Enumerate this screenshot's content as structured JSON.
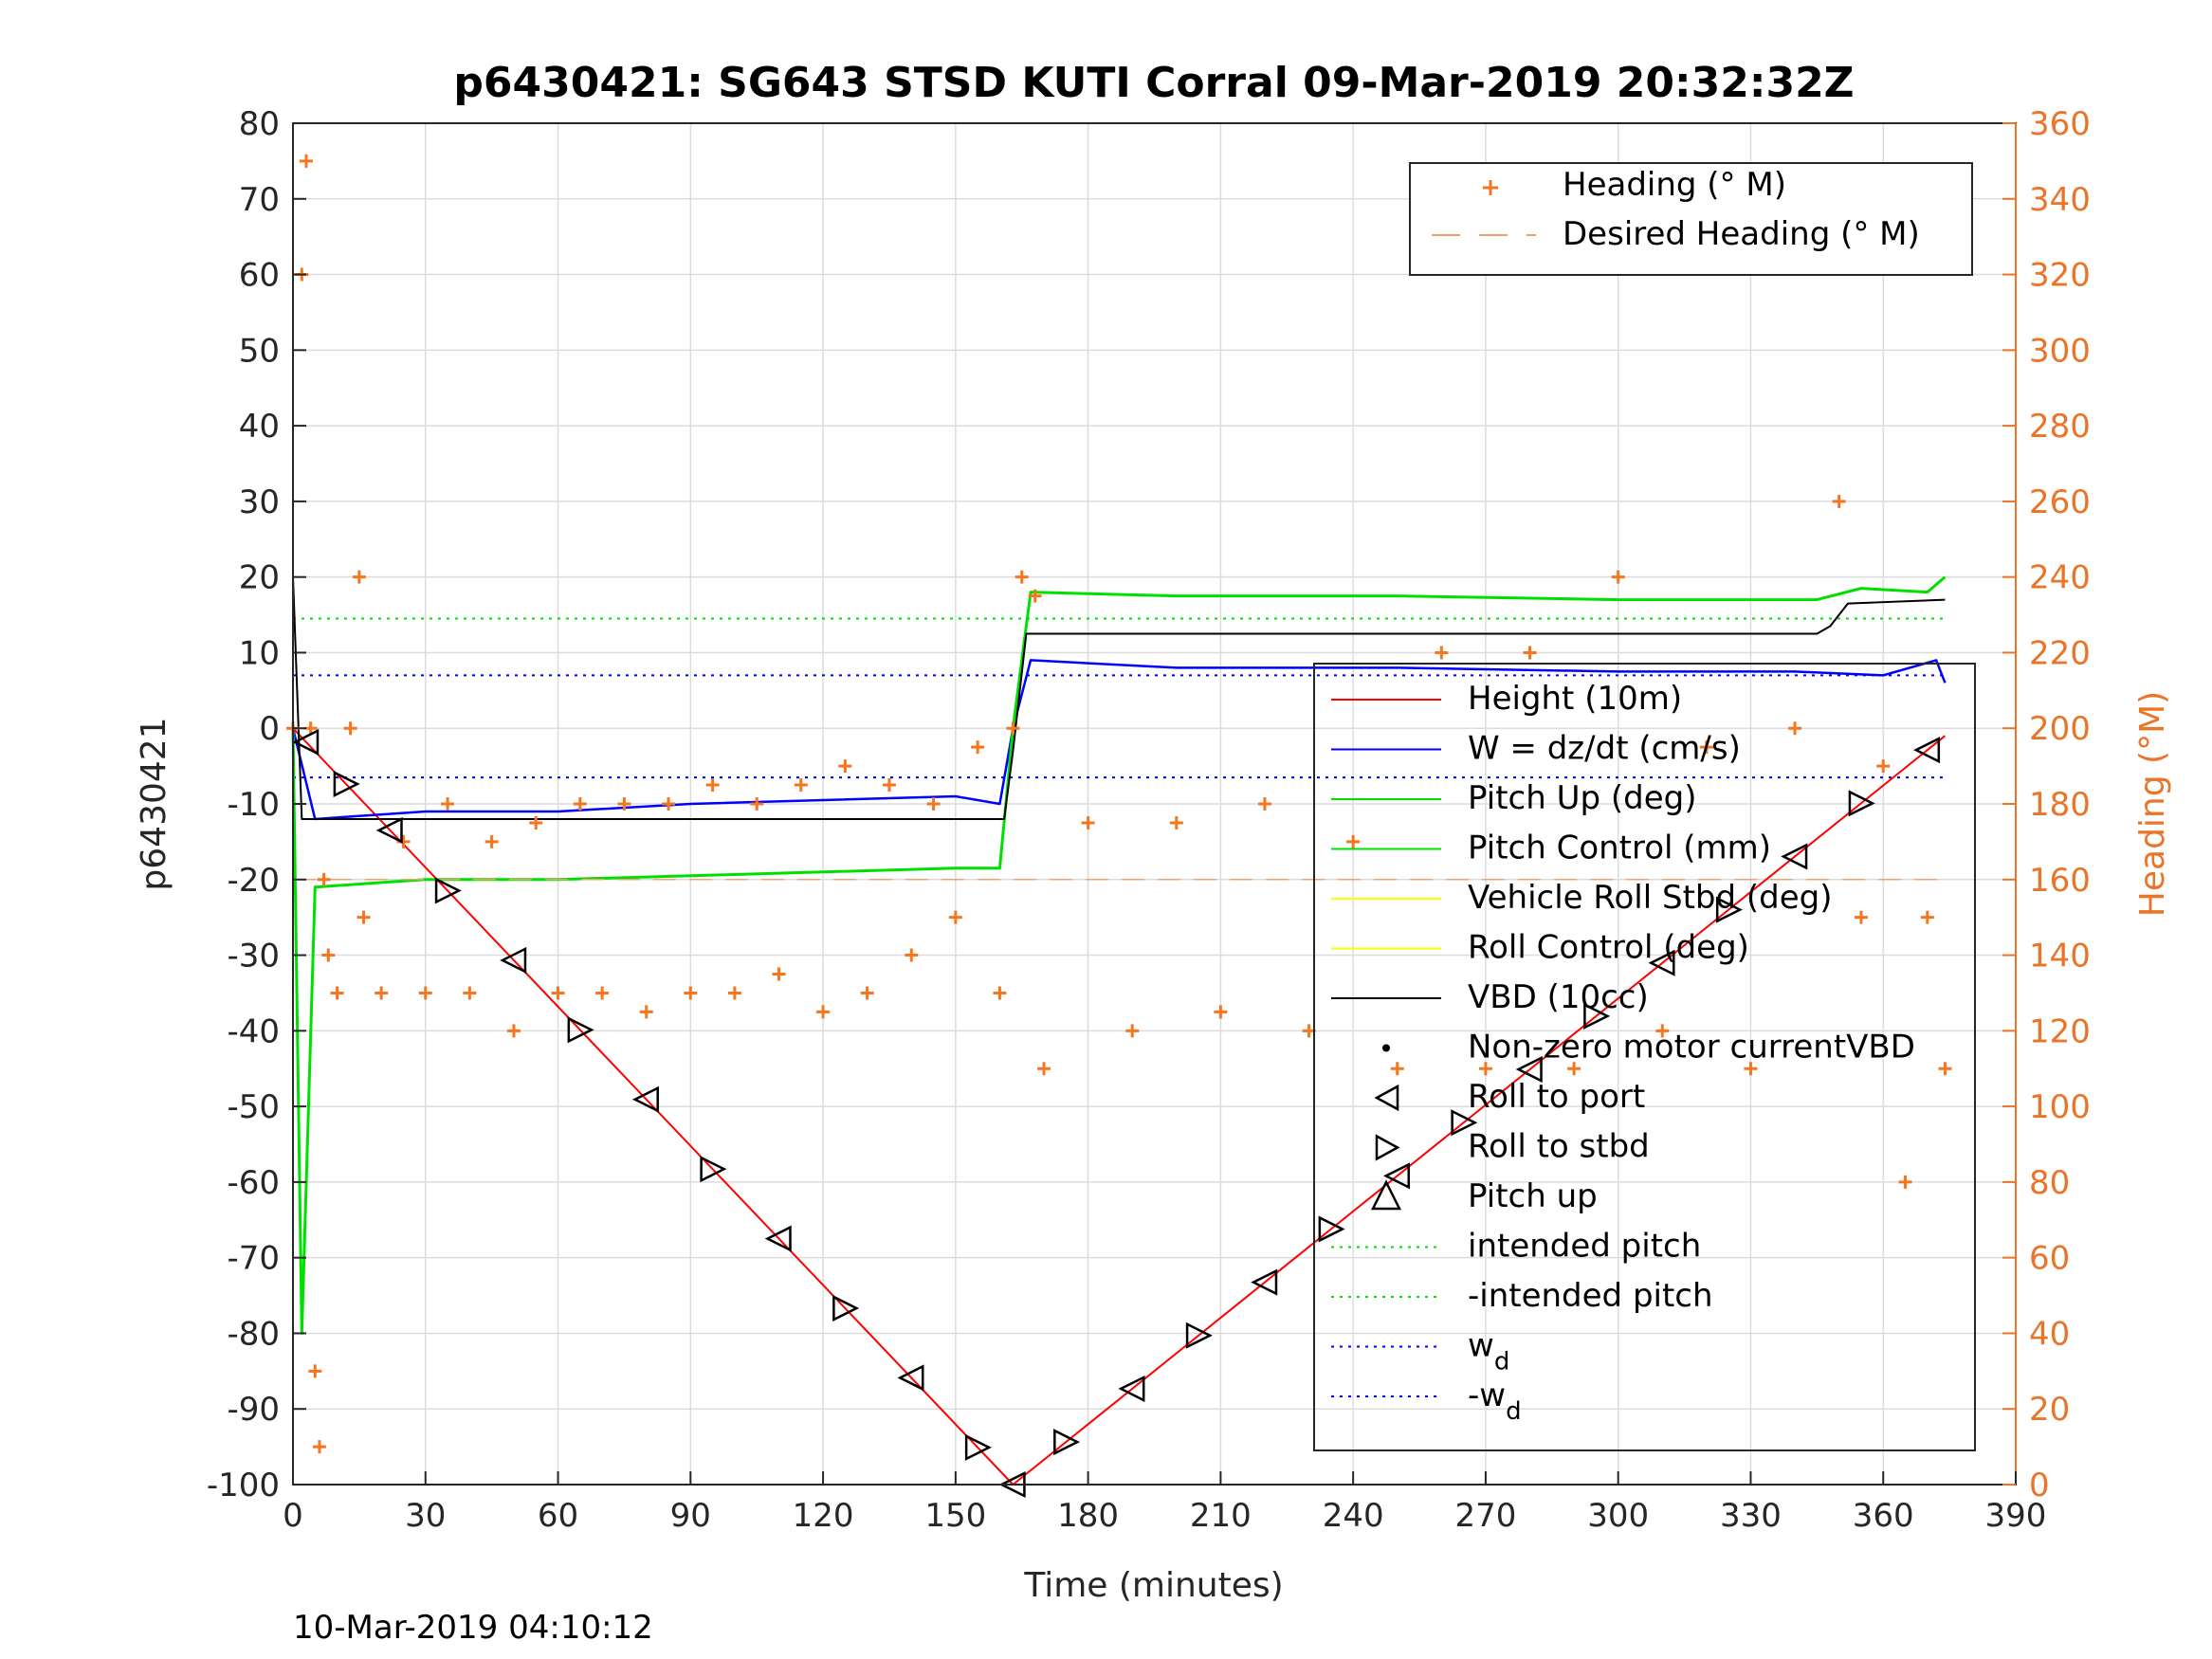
{
  "chart_data": {
    "type": "line",
    "title": "p6430421: SG643 STSD KUTI Corral 09-Mar-2019 20:32:32Z",
    "xlabel": "Time (minutes)",
    "ylabel_left": "p6430421",
    "ylabel_right": "Heading (°M)",
    "footer": "10-Mar-2019 04:10:12",
    "xlim": [
      0,
      390
    ],
    "ylim_left": [
      -100,
      80
    ],
    "ylim_right": [
      0,
      360
    ],
    "x_ticks": [
      "0",
      "30",
      "60",
      "90",
      "120",
      "150",
      "180",
      "210",
      "240",
      "270",
      "300",
      "330",
      "360",
      "390"
    ],
    "y_left_ticks": [
      "80",
      "70",
      "60",
      "50",
      "40",
      "30",
      "20",
      "10",
      "0",
      "-10",
      "-20",
      "-30",
      "-40",
      "-50",
      "-60",
      "-70",
      "-80",
      "-90",
      "-100"
    ],
    "y_right_ticks": [
      "360",
      "340",
      "320",
      "300",
      "280",
      "260",
      "240",
      "220",
      "200",
      "180",
      "160",
      "140",
      "120",
      "100",
      "80",
      "60",
      "40",
      "20",
      "0"
    ],
    "grid": true,
    "colors": {
      "height": "#ff0000",
      "w": "#0000ff",
      "pitch": "#00e000",
      "roll": "#ffff00",
      "vbd": "#000000",
      "heading": "#f5761f"
    },
    "legend_heading": [
      {
        "label": "Heading (° M)"
      },
      {
        "label": "Desired Heading (° M)"
      }
    ],
    "legend_main": [
      {
        "label": "Height (10m)"
      },
      {
        "label": "W = dz/dt (cm/s)"
      },
      {
        "label": "Pitch Up (deg)"
      },
      {
        "label": "Pitch Control (mm)"
      },
      {
        "label": "Vehicle Roll Stbd (deg)"
      },
      {
        "label": "Roll Control (deg)"
      },
      {
        "label": "VBD (10cc)"
      },
      {
        "label": "Non-zero motor currentVBD"
      },
      {
        "label": "Roll to port"
      },
      {
        "label": "Roll to stbd"
      },
      {
        "label": "Pitch up"
      },
      {
        "label": "intended pitch"
      },
      {
        "label": "-intended pitch"
      },
      {
        "label": "w",
        "sub": "d"
      },
      {
        "label": "-w",
        "sub": "d"
      }
    ],
    "series": [
      {
        "name": "Height (10m)",
        "x": [
          0,
          163,
          374
        ],
        "y": [
          0,
          -100,
          -1
        ]
      },
      {
        "name": "W = dz/dt (cm/s)",
        "x": [
          0,
          5,
          30,
          60,
          90,
          120,
          150,
          160,
          163,
          167,
          200,
          250,
          300,
          340,
          360,
          372,
          374
        ],
        "y": [
          0,
          -12,
          -11,
          -11,
          -10,
          -9.5,
          -9,
          -10,
          0,
          9,
          8,
          8,
          7.5,
          7.5,
          7,
          9,
          6
        ]
      },
      {
        "name": "Pitch Up (deg)",
        "x": [
          0,
          2,
          5,
          30,
          60,
          90,
          120,
          150,
          160,
          163,
          167,
          200,
          250,
          300,
          345,
          355,
          370,
          374
        ],
        "y": [
          0,
          -80,
          -21,
          -20,
          -20,
          -19.5,
          -19,
          -18.5,
          -18.5,
          0,
          18,
          17.5,
          17.5,
          17,
          17,
          18.5,
          18,
          20
        ]
      },
      {
        "name": "VBD (10cc)",
        "x": [
          0,
          2,
          6,
          161,
          163,
          166,
          345,
          348,
          352,
          374
        ],
        "y": [
          20,
          -12,
          -12,
          -12,
          -3,
          12.5,
          12.5,
          13.5,
          16.5,
          17
        ]
      },
      {
        "name": "Heading (° M)",
        "x": [
          0,
          2,
          3,
          4,
          5,
          6,
          7,
          8,
          10,
          13,
          15,
          16,
          20,
          25,
          30,
          35,
          40,
          45,
          50,
          55,
          60,
          65,
          70,
          75,
          80,
          85,
          90,
          95,
          100,
          105,
          110,
          115,
          120,
          125,
          130,
          135,
          140,
          145,
          150,
          155,
          160,
          163,
          165,
          168,
          170,
          180,
          190,
          200,
          210,
          220,
          230,
          240,
          250,
          260,
          270,
          280,
          290,
          300,
          310,
          320,
          330,
          340,
          350,
          355,
          360,
          365,
          370,
          374
        ],
        "y": [
          200,
          320,
          350,
          200,
          30,
          10,
          160,
          140,
          130,
          200,
          240,
          150,
          130,
          170,
          130,
          180,
          130,
          170,
          120,
          175,
          130,
          180,
          130,
          180,
          125,
          180,
          130,
          185,
          130,
          180,
          135,
          185,
          125,
          190,
          130,
          185,
          140,
          180,
          150,
          195,
          130,
          200,
          240,
          235,
          110,
          175,
          120,
          175,
          125,
          180,
          120,
          170,
          110,
          220,
          110,
          220,
          110,
          240,
          120,
          195,
          110,
          200,
          260,
          150,
          190,
          80,
          150,
          110
        ]
      },
      {
        "name": "Desired Heading (° M)",
        "x": [
          0,
          374
        ],
        "y": [
          160,
          160
        ]
      }
    ],
    "reference_lines": [
      {
        "label": "intended pitch",
        "y": 14.5
      },
      {
        "label": "-intended pitch",
        "y": -6.5
      },
      {
        "label": "w_d",
        "y": 7
      },
      {
        "label": "-w_d",
        "y": -6.5
      }
    ]
  }
}
